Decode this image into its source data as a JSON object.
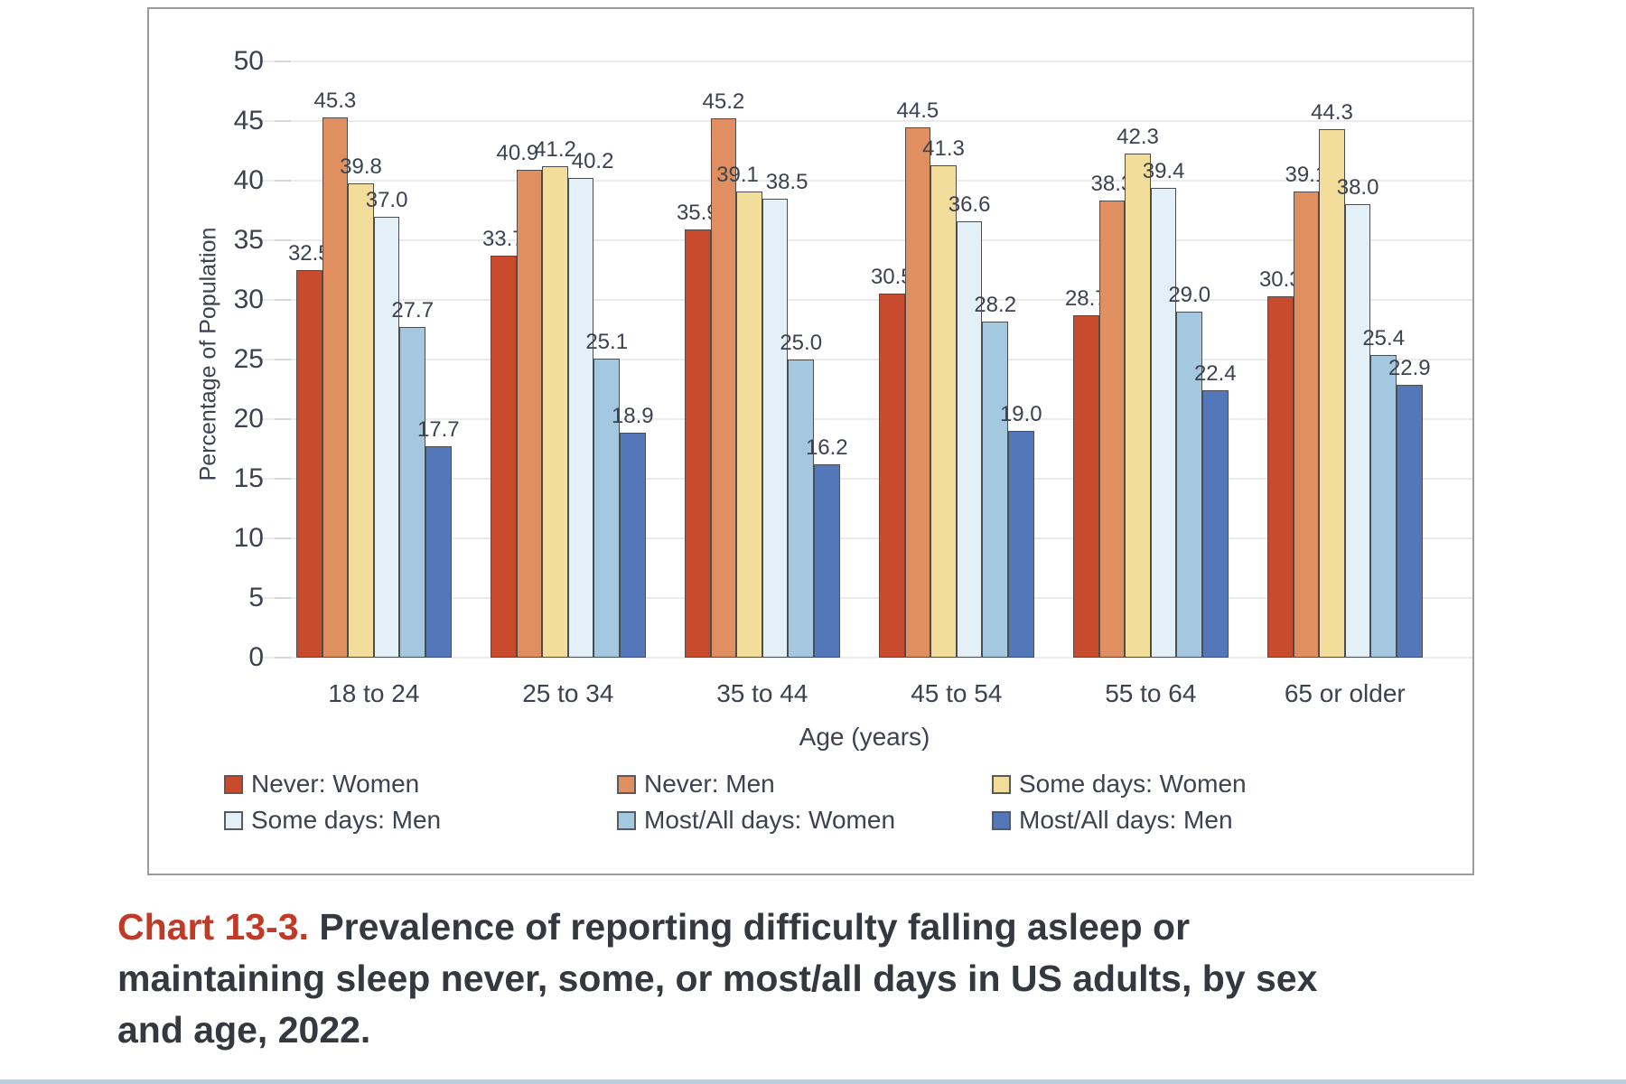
{
  "chart_data": {
    "type": "bar",
    "title": "",
    "xlabel": "Age (years)",
    "ylabel": "Percentage of Population",
    "ylim": [
      0,
      50
    ],
    "ytick_step": 5,
    "grid": "horizontal",
    "legend_position": "bottom-inside",
    "categories": [
      "18 to 24",
      "25 to 34",
      "35 to 44",
      "45 to 54",
      "55 to 64",
      "65 or older"
    ],
    "series": [
      {
        "name": "Never: Women",
        "color": "#c84b2e",
        "values": [
          32.5,
          33.7,
          35.9,
          30.5,
          28.7,
          30.3
        ]
      },
      {
        "name": "Never: Men",
        "color": "#e09060",
        "values": [
          45.3,
          40.9,
          45.2,
          44.5,
          38.3,
          39.1
        ]
      },
      {
        "name": "Some days: Women",
        "color": "#f3dd9b",
        "values": [
          39.8,
          41.2,
          39.1,
          41.3,
          42.3,
          44.3
        ]
      },
      {
        "name": "Some days: Men",
        "color": "#e4f0f8",
        "values": [
          37.0,
          40.2,
          38.5,
          36.6,
          39.4,
          38.0
        ]
      },
      {
        "name": "Most/All days: Women",
        "color": "#a5c8e1",
        "values": [
          27.7,
          25.1,
          25.0,
          28.2,
          29.0,
          25.4
        ]
      },
      {
        "name": "Most/All days: Men",
        "color": "#5377b8",
        "values": [
          17.7,
          18.9,
          16.2,
          19.0,
          22.4,
          22.9
        ]
      }
    ]
  },
  "caption": {
    "label": "Chart 13-3.",
    "text": "Prevalence of reporting difficulty falling asleep or maintaining sleep never, some, or most/all days in US adults, by sex and age, 2022.",
    "label_color": "#c23a26"
  }
}
